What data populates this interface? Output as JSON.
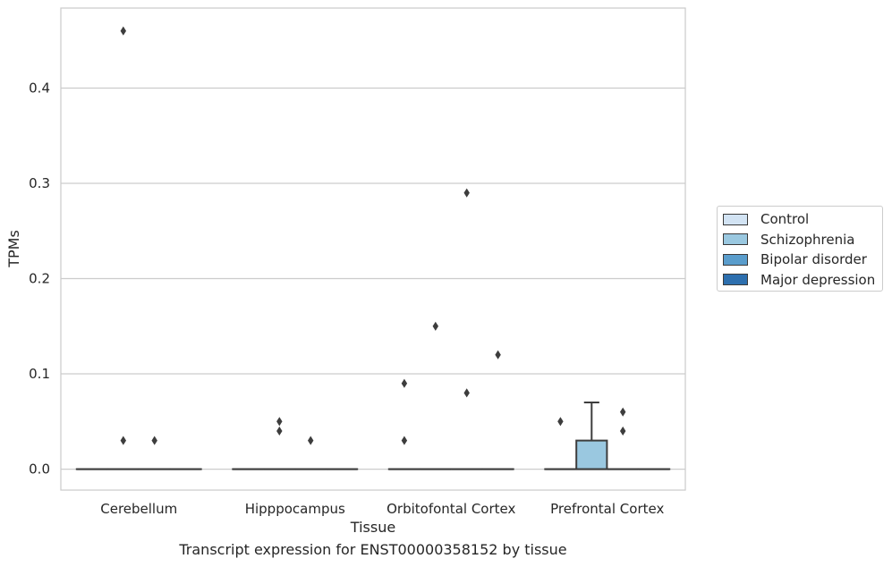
{
  "chart_data": {
    "type": "box",
    "xlabel": "Tissue",
    "ylabel": "TPMs",
    "caption": "Transcript expression for ENST00000358152 by tissue",
    "ylim": [
      -0.022,
      0.484
    ],
    "yticks": [
      "0.0",
      "0.1",
      "0.2",
      "0.3",
      "0.4"
    ],
    "ytick_values": [
      0.0,
      0.1,
      0.2,
      0.3,
      0.4
    ],
    "grid": "horizontal",
    "legend_position": "center-right, outside plot",
    "categories": [
      "Cerebellum",
      "Hipppocampus",
      "Orbitofontal Cortex",
      "Prefrontal Cortex"
    ],
    "series": [
      {
        "name": "Control",
        "color": "#d2e3f3",
        "boxes": [
          {
            "q1": 0,
            "median": 0,
            "q3": 0,
            "whisker_low": 0,
            "whisker_high": 0,
            "outliers": []
          },
          {
            "q1": 0,
            "median": 0,
            "q3": 0,
            "whisker_low": 0,
            "whisker_high": 0,
            "outliers": []
          },
          {
            "q1": 0,
            "median": 0,
            "q3": 0,
            "whisker_low": 0,
            "whisker_high": 0,
            "outliers": [
              0.03,
              0.09
            ]
          },
          {
            "q1": 0,
            "median": 0,
            "q3": 0,
            "whisker_low": 0,
            "whisker_high": 0,
            "outliers": [
              0.05
            ]
          }
        ]
      },
      {
        "name": "Schizophrenia",
        "color": "#9ac8e0",
        "boxes": [
          {
            "q1": 0,
            "median": 0,
            "q3": 0,
            "whisker_low": 0,
            "whisker_high": 0,
            "outliers": [
              0.03,
              0.46
            ]
          },
          {
            "q1": 0,
            "median": 0,
            "q3": 0,
            "whisker_low": 0,
            "whisker_high": 0,
            "outliers": [
              0.04,
              0.05
            ]
          },
          {
            "q1": 0,
            "median": 0,
            "q3": 0,
            "whisker_low": 0,
            "whisker_high": 0,
            "outliers": [
              0.15
            ]
          },
          {
            "q1": 0,
            "median": 0,
            "q3": 0.03,
            "whisker_low": 0,
            "whisker_high": 0.07,
            "outliers": []
          }
        ]
      },
      {
        "name": "Bipolar disorder",
        "color": "#5a9dcc",
        "boxes": [
          {
            "q1": 0,
            "median": 0,
            "q3": 0,
            "whisker_low": 0,
            "whisker_high": 0,
            "outliers": [
              0.03
            ]
          },
          {
            "q1": 0,
            "median": 0,
            "q3": 0,
            "whisker_low": 0,
            "whisker_high": 0,
            "outliers": [
              0.03
            ]
          },
          {
            "q1": 0,
            "median": 0,
            "q3": 0,
            "whisker_low": 0,
            "whisker_high": 0,
            "outliers": [
              0.08,
              0.29
            ]
          },
          {
            "q1": 0,
            "median": 0,
            "q3": 0,
            "whisker_low": 0,
            "whisker_high": 0,
            "outliers": [
              0.04,
              0.06
            ]
          }
        ]
      },
      {
        "name": "Major depression",
        "color": "#2d6fae",
        "boxes": [
          {
            "q1": 0,
            "median": 0,
            "q3": 0,
            "whisker_low": 0,
            "whisker_high": 0,
            "outliers": []
          },
          {
            "q1": 0,
            "median": 0,
            "q3": 0,
            "whisker_low": 0,
            "whisker_high": 0,
            "outliers": []
          },
          {
            "q1": 0,
            "median": 0,
            "q3": 0,
            "whisker_low": 0,
            "whisker_high": 0,
            "outliers": [
              0.12
            ]
          },
          {
            "q1": 0,
            "median": 0,
            "q3": 0,
            "whisker_low": 0,
            "whisker_high": 0,
            "outliers": []
          }
        ]
      }
    ]
  }
}
